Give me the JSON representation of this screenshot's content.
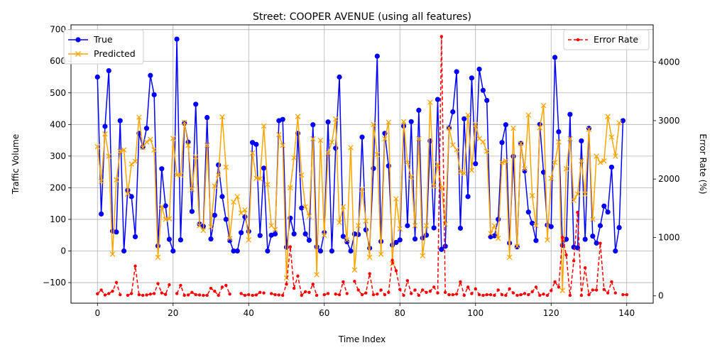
{
  "chart_data": {
    "type": "line",
    "title": "Street: COOPER AVENUE (using all features)",
    "xlabel": "Time Index",
    "ylabel": "Traffic Volume",
    "y2label": "Error Rate (%)",
    "xlim": [
      -7,
      147
    ],
    "ylim": [
      -165,
      715
    ],
    "y2lim": [
      -125,
      4640
    ],
    "xticks": [
      0,
      20,
      40,
      60,
      80,
      100,
      120,
      140
    ],
    "yticks": [
      -100,
      0,
      100,
      200,
      300,
      400,
      500,
      600,
      700
    ],
    "y2ticks": [
      0,
      1000,
      2000,
      3000,
      4000
    ],
    "grid": true,
    "legend_left_placement": "top-left",
    "legend_right_placement": "top-right",
    "colors": {
      "true": "#0000ff",
      "predicted": "#ffa500",
      "error": "#ff0000"
    },
    "series": [
      {
        "name": "True",
        "axis": "left",
        "marker": "circle",
        "values": [
          550,
          117,
          394,
          570,
          63,
          60,
          412,
          0,
          192,
          172,
          45,
          372,
          329,
          388,
          555,
          494,
          16,
          260,
          143,
          37,
          0,
          670,
          35,
          404,
          344,
          125,
          464,
          85,
          78,
          422,
          38,
          113,
          272,
          172,
          100,
          33,
          0,
          0,
          58,
          108,
          62,
          343,
          337,
          49,
          262,
          0,
          50,
          54,
          412,
          416,
          12,
          104,
          54,
          372,
          136,
          54,
          34,
          399,
          13,
          0,
          58,
          408,
          0,
          325,
          550,
          46,
          29,
          0,
          54,
          52,
          360,
          67,
          9,
          261,
          616,
          30,
          372,
          269,
          19,
          27,
          35,
          395,
          80,
          409,
          38,
          445,
          41,
          50,
          348,
          73,
          479,
          5,
          15,
          389,
          440,
          567,
          72,
          418,
          172,
          547,
          276,
          575,
          508,
          476,
          45,
          48,
          100,
          343,
          399,
          25,
          299,
          13,
          340,
          253,
          123,
          88,
          33,
          400,
          249,
          82,
          77,
          612,
          377,
          18,
          37,
          432,
          12,
          10,
          348,
          37,
          388,
          47,
          25,
          80,
          142,
          123,
          265,
          0,
          74,
          412
        ]
      },
      {
        "name": "Predicted",
        "axis": "left",
        "marker": "x",
        "values": [
          330,
          220,
          370,
          300,
          -10,
          225,
          315,
          320,
          180,
          275,
          283,
          423,
          327,
          345,
          353,
          320,
          -20,
          140,
          100,
          102,
          356,
          240,
          240,
          406,
          334,
          195,
          298,
          80,
          65,
          334,
          76,
          205,
          240,
          424,
          265,
          40,
          155,
          172,
          120,
          130,
          35,
          310,
          230,
          228,
          395,
          210,
          80,
          68,
          368,
          334,
          -85,
          200,
          295,
          425,
          240,
          140,
          110,
          355,
          -75,
          350,
          50,
          310,
          344,
          417,
          90,
          140,
          35,
          327,
          -60,
          80,
          195,
          95,
          -20,
          400,
          305,
          -10,
          355,
          407,
          -40,
          165,
          70,
          409,
          280,
          234,
          80,
          355,
          -15,
          80,
          470,
          205,
          275,
          200,
          85,
          389,
          335,
          320,
          250,
          245,
          430,
          255,
          400,
          355,
          345,
          315,
          55,
          80,
          40,
          280,
          285,
          -20,
          388,
          15,
          340,
          260,
          430,
          175,
          80,
          390,
          460,
          35,
          230,
          280,
          345,
          -125,
          260,
          355,
          160,
          180,
          285,
          180,
          385,
          100,
          300,
          280,
          285,
          425,
          360,
          300,
          405
        ]
      },
      {
        "name": "Error Rate",
        "axis": "right",
        "marker": "dot",
        "dashed": true,
        "values": [
          35,
          100,
          15,
          40,
          80,
          230,
          20,
          null,
          10,
          40,
          510,
          20,
          10,
          15,
          30,
          40,
          210,
          50,
          25,
          190,
          null,
          40,
          180,
          10,
          15,
          60,
          20,
          15,
          10,
          10,
          130,
          80,
          10,
          150,
          180,
          30,
          null,
          null,
          40,
          10,
          20,
          10,
          15,
          60,
          50,
          null,
          40,
          20,
          15,
          10,
          200,
          840,
          130,
          340,
          10,
          70,
          60,
          200,
          10,
          null,
          20,
          40,
          null,
          30,
          20,
          240,
          40,
          null,
          250,
          100,
          20,
          50,
          380,
          20,
          30,
          100,
          20,
          60,
          610,
          430,
          110,
          10,
          260,
          40,
          100,
          10,
          100,
          60,
          80,
          150,
          50,
          4440,
          60,
          20,
          20,
          30,
          240,
          10,
          150,
          40,
          120,
          20,
          10,
          20,
          20,
          10,
          100,
          20,
          10,
          120,
          50,
          10,
          20,
          40,
          20,
          70,
          150,
          10,
          30,
          10,
          90,
          240,
          150,
          1000,
          700,
          10,
          600,
          1430,
          10,
          480,
          20,
          100,
          100,
          900,
          110,
          50,
          240,
          50,
          null,
          20,
          20
        ]
      }
    ]
  }
}
